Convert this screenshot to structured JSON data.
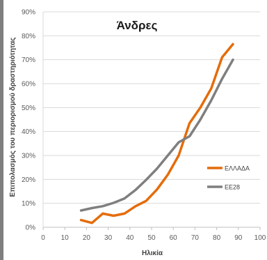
{
  "chart_data": {
    "type": "line",
    "title": "Άνδρες",
    "xlabel": "Ηλικία",
    "ylabel": "Επιπολασμός του περιορισμού δραστηριότητας",
    "xlim": [
      0,
      100
    ],
    "ylim": [
      0,
      0.9
    ],
    "x_ticks": [
      "0",
      "10",
      "20",
      "30",
      "40",
      "50",
      "60",
      "70",
      "80",
      "90",
      "100"
    ],
    "y_ticks": [
      "0%",
      "10%",
      "20%",
      "30%",
      "40%",
      "50%",
      "60%",
      "70%",
      "80%",
      "90%"
    ],
    "grid": true,
    "legend_position": "right",
    "series": [
      {
        "name": "ΕΛΛΑΔΑ",
        "color": "#e46c0a",
        "x": [
          17.5,
          22.5,
          27.5,
          32.5,
          37.5,
          42.5,
          47.5,
          52.5,
          57.5,
          62.5,
          67.5,
          72.5,
          77.5,
          82.5,
          87.5
        ],
        "y": [
          0.03,
          0.018,
          0.057,
          0.048,
          0.057,
          0.087,
          0.11,
          0.158,
          0.22,
          0.3,
          0.435,
          0.5,
          0.58,
          0.71,
          0.765
        ]
      },
      {
        "name": "ΕΕ28",
        "color": "#7f7f7f",
        "x": [
          17.5,
          22.5,
          27.5,
          32.5,
          37.5,
          42.5,
          47.5,
          52.5,
          57.5,
          62.5,
          67.5,
          72.5,
          77.5,
          82.5,
          87.5
        ],
        "y": [
          0.07,
          0.08,
          0.088,
          0.102,
          0.12,
          0.155,
          0.198,
          0.245,
          0.3,
          0.355,
          0.38,
          0.45,
          0.53,
          0.62,
          0.7
        ]
      }
    ]
  }
}
